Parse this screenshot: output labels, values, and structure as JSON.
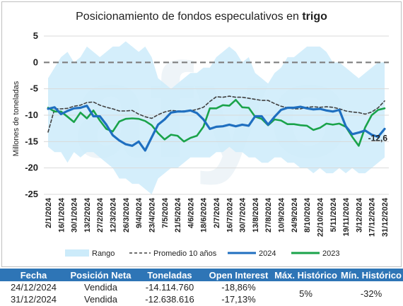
{
  "chart_data": {
    "type": "line",
    "title_prefix": "Posicionamiento de fondos especulativos en ",
    "title_bold": "trigo",
    "ylabel": "Millones de toneladas",
    "ylim": [
      -25,
      5
    ],
    "yticks": [
      5,
      0,
      -5,
      -10,
      -15,
      -20,
      -25
    ],
    "x_dates": [
      "2/1/2024",
      "9/1/2024",
      "16/1/2024",
      "23/1/2024",
      "30/1/2024",
      "6/2/2024",
      "13/2/2024",
      "20/2/2024",
      "27/2/2024",
      "5/3/2024",
      "12/3/2024",
      "19/3/2024",
      "26/3/2024",
      "2/4/2024",
      "9/4/2024",
      "16/4/2024",
      "23/4/2024",
      "30/4/2024",
      "7/5/2024",
      "14/5/2024",
      "21/5/2024",
      "28/5/2024",
      "4/6/2024",
      "11/6/2024",
      "18/6/2024",
      "25/6/2024",
      "2/7/2024",
      "9/7/2024",
      "16/7/2024",
      "23/7/2024",
      "30/7/2024",
      "6/8/2024",
      "13/8/2024",
      "20/8/2024",
      "27/8/2024",
      "3/9/2024",
      "10/9/2024",
      "17/9/2024",
      "24/9/2024",
      "1/10/2024",
      "8/10/2024",
      "15/10/2024",
      "22/10/2024",
      "29/10/2024",
      "5/11/2024",
      "12/11/2024",
      "19/11/2024",
      "26/11/2024",
      "3/12/2024",
      "10/12/2024",
      "17/12/2024",
      "24/12/2024",
      "31/12/2024"
    ],
    "x_tick_labels": [
      "2/1/2024",
      "16/1/2024",
      "30/1/2024",
      "13/2/2024",
      "27/2/2024",
      "12/3/2024",
      "26/3/2024",
      "9/4/2024",
      "23/4/2024",
      "7/5/2024",
      "21/5/2024",
      "4/6/2024",
      "18/6/2024",
      "2/7/2024",
      "16/7/2024",
      "30/7/2024",
      "13/8/2024",
      "27/8/2024",
      "10/9/2024",
      "24/9/2024",
      "8/10/2024",
      "22/10/2024",
      "5/11/2024",
      "19/11/2024",
      "3/12/2024",
      "17/12/2024",
      "31/12/2024"
    ],
    "range_upper": [
      -3,
      -1,
      1,
      2,
      0,
      1,
      3,
      2,
      1,
      2,
      3,
      3,
      4,
      3,
      2,
      3,
      1,
      -3,
      -4,
      -5,
      -4,
      -3,
      -2,
      -2,
      -1,
      -1,
      1,
      2,
      3,
      2,
      0,
      1,
      -2,
      -3,
      -4,
      -2,
      -1,
      1,
      1,
      2,
      3,
      3,
      3,
      2,
      0,
      0,
      -1,
      -2,
      -3,
      -2,
      -1,
      0,
      0
    ],
    "range_lower": [
      -16,
      -17,
      -17,
      -19,
      -17,
      -18,
      -17,
      -17,
      -18,
      -19,
      -20,
      -22,
      -22,
      -23,
      -23,
      -24,
      -25,
      -22,
      -21,
      -20,
      -20,
      -19,
      -18,
      -18,
      -18,
      -18,
      -17,
      -17,
      -16,
      -17,
      -17,
      -18,
      -18,
      -19,
      -19,
      -18,
      -18,
      -19,
      -19,
      -20,
      -20,
      -21,
      -20,
      -21,
      -21,
      -20,
      -21,
      -20,
      -21,
      -21,
      -20,
      -19,
      -18
    ],
    "series": [
      {
        "name": "Promedio 10 años",
        "values": [
          -13.2,
          -8.8,
          -8.8,
          -8.7,
          -8.3,
          -8.1,
          -7.6,
          -7.5,
          -8.1,
          -8.5,
          -8.8,
          -9.2,
          -9.2,
          -9.1,
          -9.8,
          -10.3,
          -10.6,
          -9.9,
          -9.4,
          -9.1,
          -9.2,
          -9.2,
          -9.2,
          -8.9,
          -8.5,
          -7.4,
          -6.5,
          -6.6,
          -6.4,
          -6.6,
          -6.6,
          -6.8,
          -7.0,
          -7.2,
          -7.2,
          -7.8,
          -8.3,
          -8.6,
          -8.8,
          -8.8,
          -8.5,
          -8.4,
          -8.5,
          -8.4,
          -8.5,
          -8.8,
          -9.2,
          -9.4,
          -9.5,
          -9.8,
          -9.4,
          -8.6,
          -7.3
        ]
      },
      {
        "name": "2024",
        "values": [
          -8.8,
          -8.5,
          -9.8,
          -9.2,
          -8.7,
          -8.6,
          -8.2,
          -10.2,
          -10.2,
          -11.8,
          -13.8,
          -14.8,
          -15.5,
          -15.8,
          -15.0,
          -16.7,
          -14.2,
          -11.8,
          -10.8,
          -9.5,
          -9.3,
          -9.3,
          -9.1,
          -9.6,
          -10.8,
          -12.6,
          -12.2,
          -12.1,
          -11.8,
          -12.1,
          -11.8,
          -12.0,
          -10.2,
          -10.2,
          -11.8,
          -10.3,
          -9.0,
          -8.6,
          -8.6,
          -8.4,
          -8.7,
          -8.9,
          -8.8,
          -9.1,
          -9.3,
          -9.0,
          -12.1,
          -13.6,
          -13.3,
          -12.9,
          -13.7,
          -14.1,
          -12.6
        ]
      },
      {
        "name": "2023",
        "values": [
          -8.6,
          -9.3,
          -9.3,
          -10.3,
          -11.3,
          -9.5,
          -10.6,
          -9.1,
          -11.0,
          -12.6,
          -13.1,
          -11.2,
          -10.7,
          -10.6,
          -10.7,
          -11.1,
          -11.9,
          -13.4,
          -14.6,
          -13.7,
          -13.9,
          -15.0,
          -14.3,
          -13.9,
          -12.2,
          -8.7,
          -8.7,
          -8.1,
          -8.2,
          -7.1,
          -8.5,
          -8.6,
          -10.3,
          -10.7,
          -11.9,
          -10.8,
          -11.0,
          -11.7,
          -11.7,
          -11.9,
          -12.0,
          -12.8,
          -12.4,
          -11.6,
          -11.8,
          -11.6,
          -12.2,
          -14.1,
          -15.8,
          -12.3,
          -10.0,
          -9.0,
          -8.7
        ]
      }
    ],
    "legend": [
      {
        "label": "Rango",
        "type": "area"
      },
      {
        "label": "Promedio 10 años",
        "type": "dashed"
      },
      {
        "label": "2024",
        "type": "line"
      },
      {
        "label": "2023",
        "type": "line"
      }
    ],
    "legend_position": "bottom",
    "end_label": "-12,6",
    "watermark": "afyo",
    "colors": {
      "range": "#ccebfa",
      "average": "#404040",
      "s2024": "#1f6fc0",
      "s2023": "#1aa34a",
      "zero_line": "#7f7f7f",
      "grid": "#d9d9d9"
    }
  },
  "table": {
    "headers": [
      "Fecha",
      "Posición Neta",
      "Toneladas",
      "Open Interest",
      "Máx. Histórico",
      "Mín. Histórico"
    ],
    "rows": [
      [
        "24/12/2024",
        "Vendida",
        "-14.114.760",
        "-18,86%"
      ],
      [
        "31/12/2024",
        "Vendida",
        "-12.638.616",
        "-17,13%"
      ]
    ],
    "max_hist": "5%",
    "min_hist": "-32%",
    "header_color": "#2e75b6"
  }
}
